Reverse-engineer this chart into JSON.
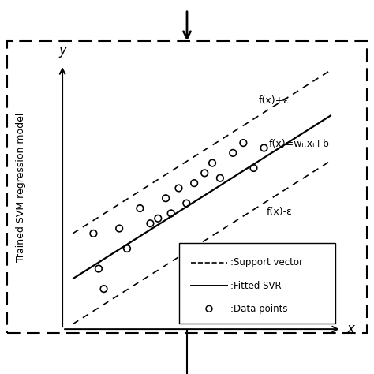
{
  "title": "Trained SVM regression model",
  "xlabel": "x",
  "ylabel": "y",
  "slope": 0.65,
  "intercept": 0.18,
  "epsilon": 0.18,
  "x_range": [
    0.0,
    1.0
  ],
  "data_points": [
    [
      0.08,
      0.36
    ],
    [
      0.1,
      0.22
    ],
    [
      0.12,
      0.14
    ],
    [
      0.18,
      0.38
    ],
    [
      0.21,
      0.3
    ],
    [
      0.26,
      0.46
    ],
    [
      0.3,
      0.4
    ],
    [
      0.33,
      0.42
    ],
    [
      0.36,
      0.5
    ],
    [
      0.38,
      0.44
    ],
    [
      0.41,
      0.54
    ],
    [
      0.44,
      0.48
    ],
    [
      0.47,
      0.56
    ],
    [
      0.51,
      0.6
    ],
    [
      0.54,
      0.64
    ],
    [
      0.57,
      0.58
    ],
    [
      0.62,
      0.68
    ],
    [
      0.66,
      0.72
    ],
    [
      0.7,
      0.62
    ],
    [
      0.74,
      0.7
    ]
  ],
  "label_upper": "f(x)+ε",
  "label_middle": "f(x)=wᵢ.xᵢ+b",
  "label_lower": "f(x)-ε",
  "legend_dashed": ":Support vector",
  "legend_solid": ":Fitted SVR",
  "legend_circle": ":Data points",
  "line_color": "#000000",
  "point_color": "#000000",
  "background": "#ffffff"
}
